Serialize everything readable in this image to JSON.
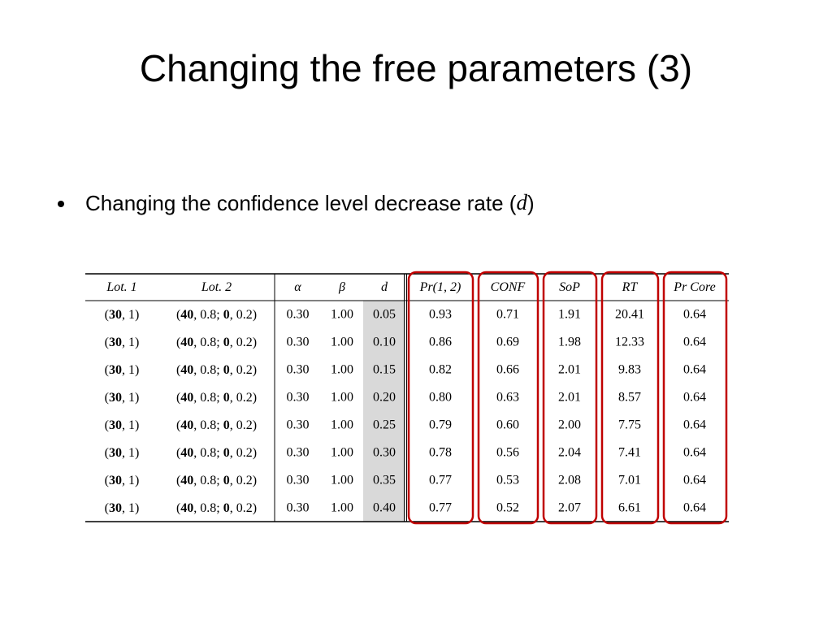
{
  "title": "Changing the free parameters (3)",
  "bullet": [
    {
      "text": "Changing the confidence level decrease rate (",
      "italic": false
    },
    {
      "text": "d",
      "italic": true
    },
    {
      "text": ")",
      "italic": false
    }
  ],
  "table": {
    "header": [
      "Lot. 1",
      "Lot. 2",
      "α",
      "β",
      "d",
      "Pr(1, 2)",
      "CONF",
      "SoP",
      "RT",
      "Pr Core"
    ],
    "rows": [
      [
        [
          {
            "text": "(",
            "bold": false
          },
          {
            "text": "30",
            "bold": true
          },
          {
            "text": ", 1)",
            "bold": false
          }
        ],
        [
          {
            "text": "(",
            "bold": false
          },
          {
            "text": "40",
            "bold": true
          },
          {
            "text": ", 0.8; ",
            "bold": false
          },
          {
            "text": "0",
            "bold": true
          },
          {
            "text": ", 0.2)",
            "bold": false
          }
        ],
        "0.30",
        "1.00",
        "0.05",
        "0.93",
        "0.71",
        "1.91",
        "20.41",
        "0.64"
      ],
      [
        [
          {
            "text": "(",
            "bold": false
          },
          {
            "text": "30",
            "bold": true
          },
          {
            "text": ", 1)",
            "bold": false
          }
        ],
        [
          {
            "text": "(",
            "bold": false
          },
          {
            "text": "40",
            "bold": true
          },
          {
            "text": ", 0.8; ",
            "bold": false
          },
          {
            "text": "0",
            "bold": true
          },
          {
            "text": ", 0.2)",
            "bold": false
          }
        ],
        "0.30",
        "1.00",
        "0.10",
        "0.86",
        "0.69",
        "1.98",
        "12.33",
        "0.64"
      ],
      [
        [
          {
            "text": "(",
            "bold": false
          },
          {
            "text": "30",
            "bold": true
          },
          {
            "text": ", 1)",
            "bold": false
          }
        ],
        [
          {
            "text": "(",
            "bold": false
          },
          {
            "text": "40",
            "bold": true
          },
          {
            "text": ", 0.8; ",
            "bold": false
          },
          {
            "text": "0",
            "bold": true
          },
          {
            "text": ", 0.2)",
            "bold": false
          }
        ],
        "0.30",
        "1.00",
        "0.15",
        "0.82",
        "0.66",
        "2.01",
        "9.83",
        "0.64"
      ],
      [
        [
          {
            "text": "(",
            "bold": false
          },
          {
            "text": "30",
            "bold": true
          },
          {
            "text": ", 1)",
            "bold": false
          }
        ],
        [
          {
            "text": "(",
            "bold": false
          },
          {
            "text": "40",
            "bold": true
          },
          {
            "text": ", 0.8; ",
            "bold": false
          },
          {
            "text": "0",
            "bold": true
          },
          {
            "text": ", 0.2)",
            "bold": false
          }
        ],
        "0.30",
        "1.00",
        "0.20",
        "0.80",
        "0.63",
        "2.01",
        "8.57",
        "0.64"
      ],
      [
        [
          {
            "text": "(",
            "bold": false
          },
          {
            "text": "30",
            "bold": true
          },
          {
            "text": ", 1)",
            "bold": false
          }
        ],
        [
          {
            "text": "(",
            "bold": false
          },
          {
            "text": "40",
            "bold": true
          },
          {
            "text": ", 0.8; ",
            "bold": false
          },
          {
            "text": "0",
            "bold": true
          },
          {
            "text": ", 0.2)",
            "bold": false
          }
        ],
        "0.30",
        "1.00",
        "0.25",
        "0.79",
        "0.60",
        "2.00",
        "7.75",
        "0.64"
      ],
      [
        [
          {
            "text": "(",
            "bold": false
          },
          {
            "text": "30",
            "bold": true
          },
          {
            "text": ", 1)",
            "bold": false
          }
        ],
        [
          {
            "text": "(",
            "bold": false
          },
          {
            "text": "40",
            "bold": true
          },
          {
            "text": ", 0.8; ",
            "bold": false
          },
          {
            "text": "0",
            "bold": true
          },
          {
            "text": ", 0.2)",
            "bold": false
          }
        ],
        "0.30",
        "1.00",
        "0.30",
        "0.78",
        "0.56",
        "2.04",
        "7.41",
        "0.64"
      ],
      [
        [
          {
            "text": "(",
            "bold": false
          },
          {
            "text": "30",
            "bold": true
          },
          {
            "text": ", 1)",
            "bold": false
          }
        ],
        [
          {
            "text": "(",
            "bold": false
          },
          {
            "text": "40",
            "bold": true
          },
          {
            "text": ", 0.8; ",
            "bold": false
          },
          {
            "text": "0",
            "bold": true
          },
          {
            "text": ", 0.2)",
            "bold": false
          }
        ],
        "0.30",
        "1.00",
        "0.35",
        "0.77",
        "0.53",
        "2.08",
        "7.01",
        "0.64"
      ],
      [
        [
          {
            "text": "(",
            "bold": false
          },
          {
            "text": "30",
            "bold": true
          },
          {
            "text": ", 1)",
            "bold": false
          }
        ],
        [
          {
            "text": "(",
            "bold": false
          },
          {
            "text": "40",
            "bold": true
          },
          {
            "text": ", 0.8; ",
            "bold": false
          },
          {
            "text": "0",
            "bold": true
          },
          {
            "text": ", 0.2)",
            "bold": false
          }
        ],
        "0.30",
        "1.00",
        "0.40",
        "0.77",
        "0.52",
        "2.07",
        "6.61",
        "0.64"
      ]
    ]
  }
}
